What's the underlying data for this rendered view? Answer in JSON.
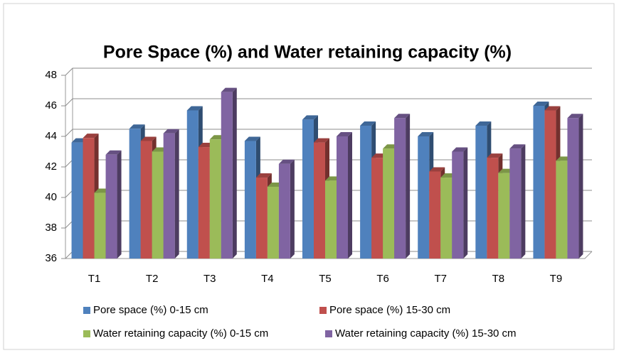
{
  "chart_data": {
    "type": "bar",
    "title": "Pore Space (%) and Water retaining capacity (%)",
    "categories": [
      "T1",
      "T2",
      "T3",
      "T4",
      "T5",
      "T6",
      "T7",
      "T8",
      "T9"
    ],
    "series": [
      {
        "name": "Pore space (%) 0-15 cm",
        "color": "#4f81bd",
        "values": [
          43.6,
          44.5,
          45.7,
          43.7,
          45.1,
          44.7,
          44.0,
          44.7,
          46.0
        ]
      },
      {
        "name": "Pore space (%) 15-30 cm",
        "color": "#c0504d",
        "values": [
          43.9,
          43.7,
          43.3,
          41.3,
          43.6,
          42.6,
          41.7,
          42.6,
          45.7
        ]
      },
      {
        "name": "Water retaining capacity (%) 0-15 cm",
        "color": "#9bbb59",
        "values": [
          40.3,
          43.0,
          43.8,
          40.7,
          41.1,
          43.2,
          41.3,
          41.6,
          42.4
        ]
      },
      {
        "name": "Water retaining capacity (%) 15-30 cm",
        "color": "#8064a2",
        "values": [
          42.8,
          44.2,
          46.9,
          42.2,
          44.0,
          45.2,
          43.0,
          43.2,
          45.2
        ]
      }
    ],
    "ylim": [
      36,
      48
    ],
    "yticks": [
      36,
      38,
      40,
      42,
      44,
      46,
      48
    ],
    "grid": true,
    "legend": "bottom"
  }
}
